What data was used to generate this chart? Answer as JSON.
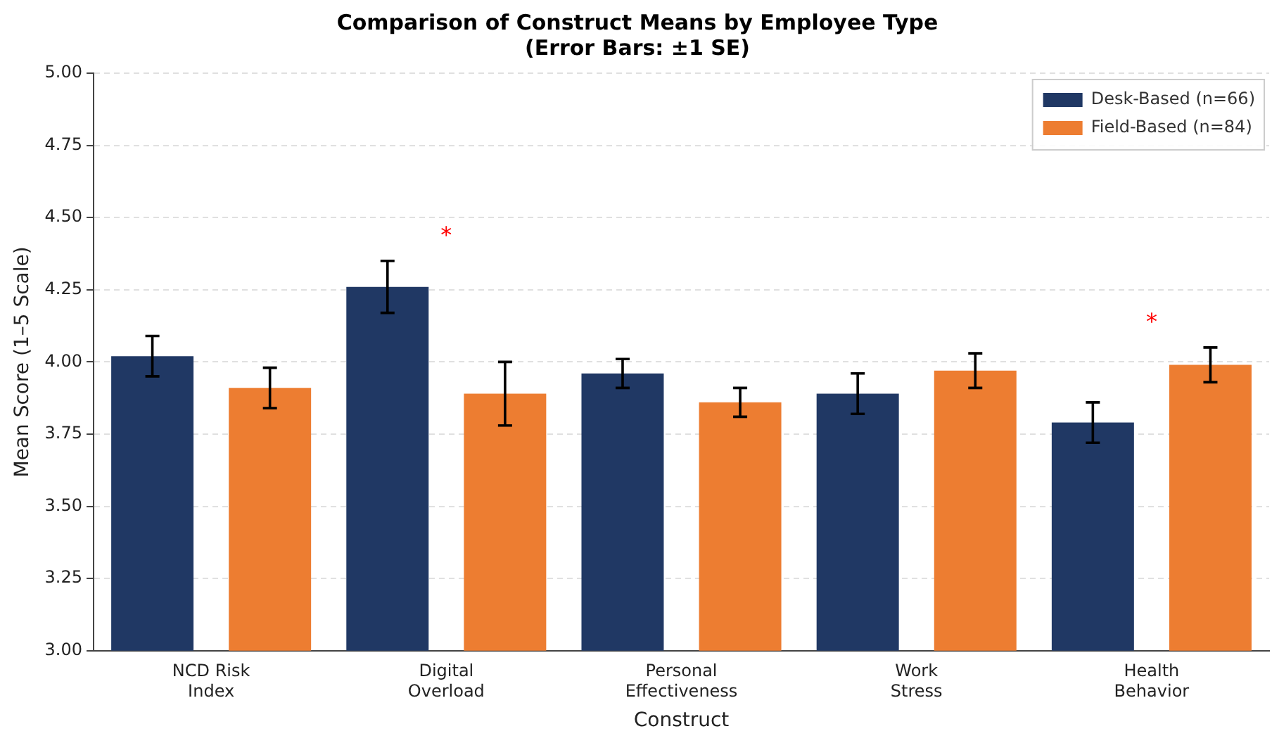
{
  "chart_data": {
    "type": "bar",
    "title": "Comparison of Construct Means by Employee Type",
    "subtitle": "(Error Bars: ±1 SE)",
    "xlabel": "Construct",
    "ylabel": "Mean Score (1–5 Scale)",
    "categories": [
      "NCD Risk\nIndex",
      "Digital\nOverload",
      "Personal\nEffectiveness",
      "Work\nStress",
      "Health\nBehavior"
    ],
    "series": [
      {
        "name": "Desk-Based (n=66)",
        "color": "#203864",
        "values": [
          4.02,
          4.26,
          3.96,
          3.89,
          3.79
        ],
        "errors": [
          0.07,
          0.09,
          0.05,
          0.07,
          0.07
        ]
      },
      {
        "name": "Field-Based (n=84)",
        "color": "#ed7d31",
        "values": [
          3.91,
          3.89,
          3.86,
          3.97,
          3.99
        ],
        "errors": [
          0.07,
          0.11,
          0.05,
          0.06,
          0.06
        ]
      }
    ],
    "ylim": [
      3.0,
      5.0
    ],
    "yticks": [
      {
        "value": 3.0,
        "label": "3.00"
      },
      {
        "value": 3.25,
        "label": "3.25"
      },
      {
        "value": 3.5,
        "label": "3.50"
      },
      {
        "value": 3.75,
        "label": "3.75"
      },
      {
        "value": 4.0,
        "label": "4.00"
      },
      {
        "value": 4.25,
        "label": "4.25"
      },
      {
        "value": 4.5,
        "label": "4.50"
      },
      {
        "value": 4.75,
        "label": "4.75"
      },
      {
        "value": 5.0,
        "label": "5.00"
      }
    ],
    "grid": "y",
    "legend": "top right",
    "annotations": [
      "*",
      "*"
    ]
  }
}
